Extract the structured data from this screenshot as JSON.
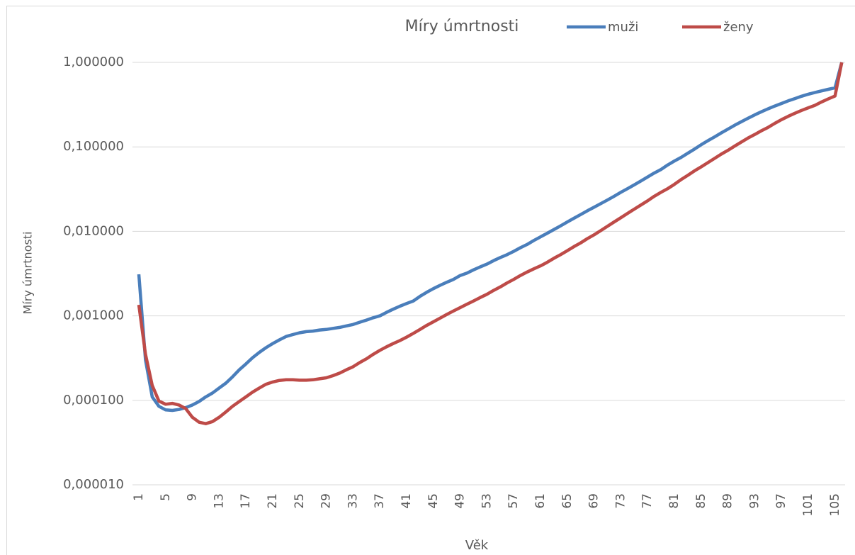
{
  "chart_data": {
    "type": "line",
    "title": "Míry úmrtnosti",
    "x_label": "Věk",
    "y_label": "Míry úmrtnosti",
    "log_scale": true,
    "grid": true,
    "legend": "top",
    "categories": [
      "1",
      null,
      null,
      null,
      "5",
      null,
      null,
      null,
      "9",
      null,
      null,
      null,
      "13",
      null,
      null,
      null,
      "17",
      null,
      null,
      null,
      "21",
      null,
      null,
      null,
      "25",
      null,
      null,
      null,
      "29",
      null,
      null,
      null,
      "33",
      null,
      null,
      null,
      "37",
      null,
      null,
      null,
      "41",
      null,
      null,
      null,
      "45",
      null,
      null,
      null,
      "49",
      null,
      null,
      null,
      "53",
      null,
      null,
      null,
      "57",
      null,
      null,
      null,
      "61",
      null,
      null,
      null,
      "65",
      null,
      null,
      null,
      "69",
      null,
      null,
      null,
      "73",
      null,
      null,
      null,
      "77",
      null,
      null,
      null,
      "81",
      null,
      null,
      null,
      "85",
      null,
      null,
      null,
      "89",
      null,
      null,
      null,
      "93",
      null,
      null,
      null,
      "97",
      null,
      null,
      null,
      "101",
      null,
      null,
      null,
      "105",
      null
    ],
    "ylim": [
      1e-05,
      1
    ],
    "yticks": [
      {
        "value": 1e-05,
        "label": "0,000010"
      },
      {
        "value": 0.0001,
        "label": "0,000100"
      },
      {
        "value": 0.001,
        "label": "0,001000"
      },
      {
        "value": 0.01,
        "label": "0,010000"
      },
      {
        "value": 0.1,
        "label": "0,100000"
      },
      {
        "value": 1,
        "label": "1,000000"
      }
    ],
    "series": [
      {
        "name": "muži",
        "color": "#4a7ebb",
        "values": [
          0.0031,
          0.0003,
          0.00011,
          8.5e-05,
          7.7e-05,
          7.6e-05,
          7.8e-05,
          8.2e-05,
          8.8e-05,
          9.7e-05,
          0.00011,
          0.000122,
          0.00014,
          0.00016,
          0.00019,
          0.00023,
          0.00027,
          0.00032,
          0.00037,
          0.00042,
          0.00047,
          0.00052,
          0.00057,
          0.0006,
          0.00063,
          0.00065,
          0.00066,
          0.00068,
          0.00069,
          0.00071,
          0.00073,
          0.00076,
          0.00079,
          0.00084,
          0.00089,
          0.00095,
          0.001,
          0.0011,
          0.0012,
          0.0013,
          0.0014,
          0.0015,
          0.0017,
          0.0019,
          0.0021,
          0.0023,
          0.0025,
          0.0027,
          0.003,
          0.0032,
          0.0035,
          0.0038,
          0.0041,
          0.0045,
          0.0049,
          0.0053,
          0.0058,
          0.0064,
          0.007,
          0.0078,
          0.0086,
          0.0095,
          0.0105,
          0.0116,
          0.0129,
          0.0143,
          0.0158,
          0.0175,
          0.0193,
          0.0213,
          0.0235,
          0.026,
          0.029,
          0.032,
          0.0355,
          0.0395,
          0.044,
          0.049,
          0.054,
          0.061,
          0.068,
          0.075,
          0.084,
          0.094,
          0.106,
          0.118,
          0.131,
          0.146,
          0.162,
          0.18,
          0.198,
          0.218,
          0.239,
          0.26,
          0.282,
          0.304,
          0.326,
          0.35,
          0.373,
          0.397,
          0.42,
          0.44,
          0.46,
          0.48,
          0.5,
          1.0
        ]
      },
      {
        "name": "ženy",
        "color": "#be4b48",
        "values": [
          0.00135,
          0.00035,
          0.00015,
          9.8e-05,
          9e-05,
          9.2e-05,
          8.8e-05,
          8e-05,
          6.3e-05,
          5.5e-05,
          5.3e-05,
          5.6e-05,
          6.3e-05,
          7.3e-05,
          8.5e-05,
          9.7e-05,
          0.00011,
          0.000125,
          0.00014,
          0.000155,
          0.000165,
          0.000172,
          0.000175,
          0.000175,
          0.000173,
          0.000173,
          0.000175,
          0.00018,
          0.000185,
          0.000196,
          0.00021,
          0.00023,
          0.00025,
          0.00028,
          0.00031,
          0.00035,
          0.00039,
          0.00043,
          0.00047,
          0.00051,
          0.00056,
          0.00062,
          0.00069,
          0.00077,
          0.00085,
          0.00094,
          0.00104,
          0.00114,
          0.00125,
          0.00137,
          0.0015,
          0.00165,
          0.0018,
          0.002,
          0.0022,
          0.00245,
          0.0027,
          0.003,
          0.0033,
          0.0036,
          0.0039,
          0.0043,
          0.0048,
          0.0053,
          0.0059,
          0.0066,
          0.0073,
          0.0082,
          0.0091,
          0.0102,
          0.0115,
          0.0129,
          0.0145,
          0.0163,
          0.0183,
          0.0205,
          0.023,
          0.026,
          0.029,
          0.032,
          0.036,
          0.041,
          0.046,
          0.052,
          0.058,
          0.065,
          0.073,
          0.082,
          0.091,
          0.102,
          0.114,
          0.127,
          0.14,
          0.155,
          0.17,
          0.19,
          0.21,
          0.23,
          0.25,
          0.27,
          0.29,
          0.31,
          0.34,
          0.37,
          0.4,
          1.0
        ]
      }
    ]
  }
}
